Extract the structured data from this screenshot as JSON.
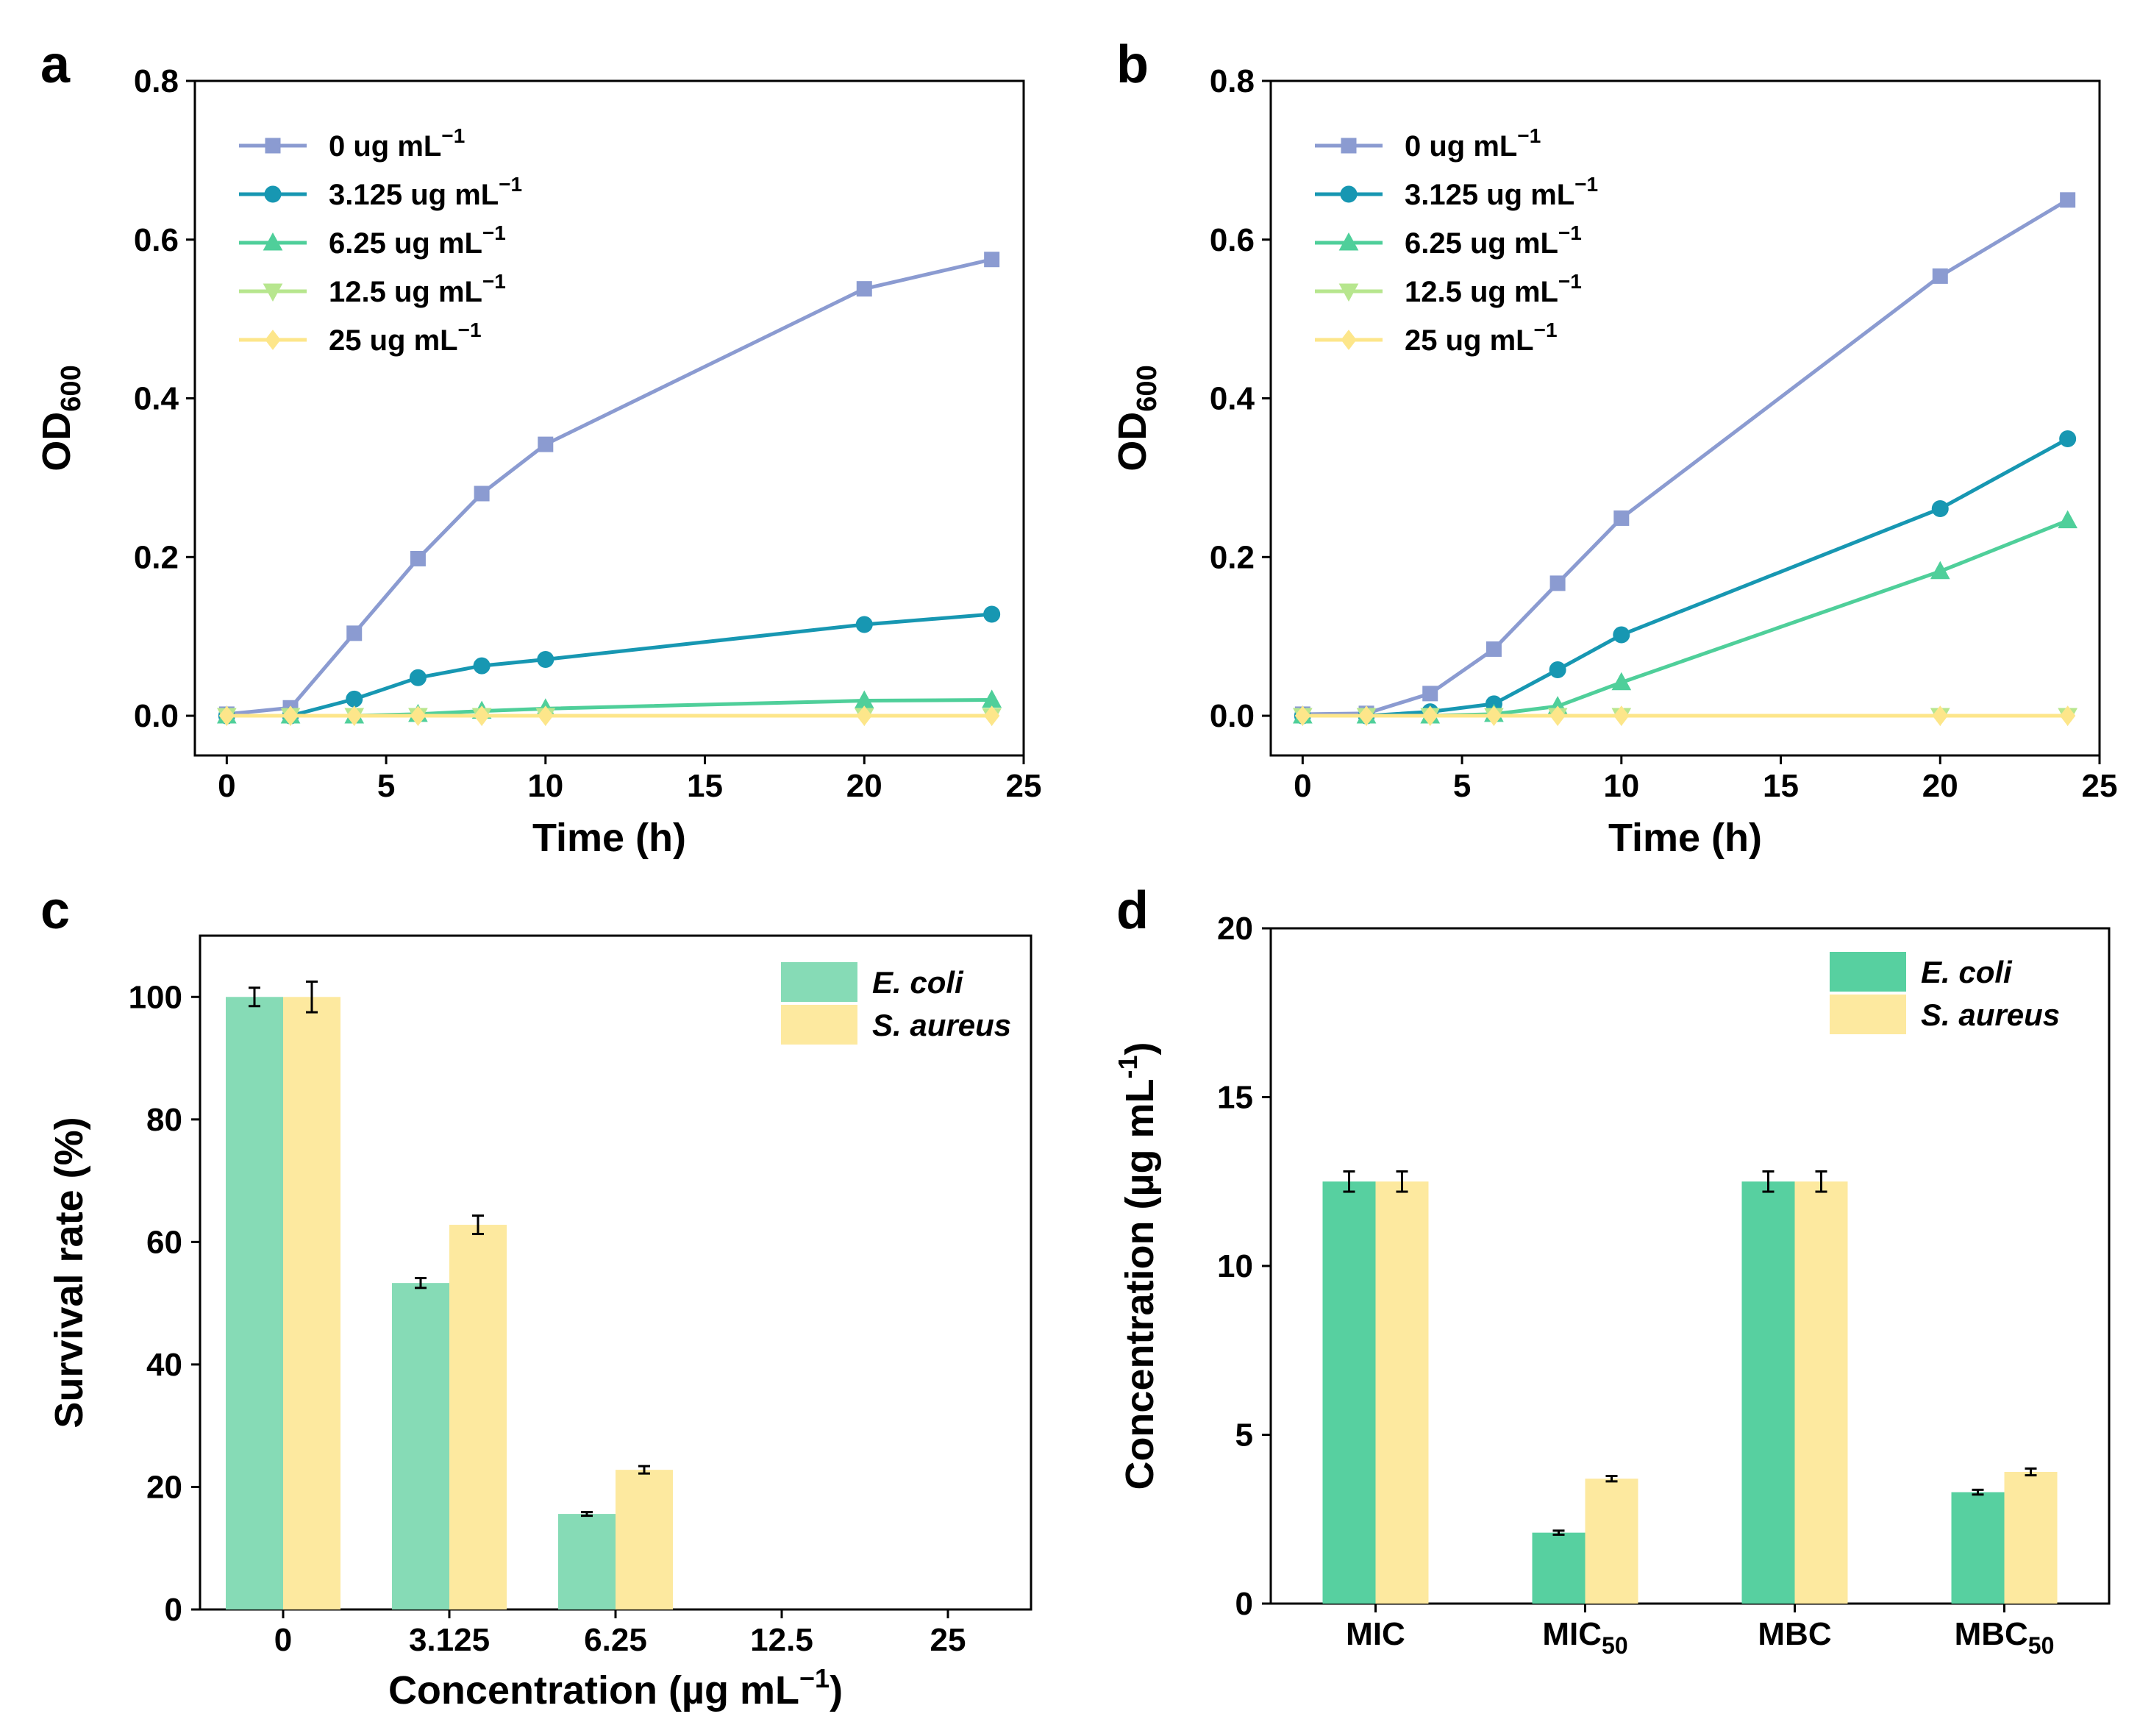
{
  "figure": {
    "panels": [
      {
        "letter": "a"
      },
      {
        "letter": "b"
      },
      {
        "letter": "c"
      },
      {
        "letter": "d"
      }
    ]
  },
  "chart_data": [
    {
      "id": "a",
      "type": "line",
      "title": "",
      "xlabel": "Time (h)",
      "ylabel": "OD",
      "ylabel_sub": "600",
      "xlim": [
        -1,
        25
      ],
      "ylim": [
        -0.05,
        0.8
      ],
      "xticks": [
        0,
        5,
        10,
        15,
        20,
        25
      ],
      "yticks": [
        0.0,
        0.2,
        0.4,
        0.6,
        0.8
      ],
      "ytick_labels": [
        "0.0",
        "0.2",
        "0.4",
        "0.6",
        "0.8"
      ],
      "legend_position": "top-left",
      "x": [
        0,
        2,
        4,
        6,
        8,
        10,
        20,
        24
      ],
      "series": [
        {
          "name": "0 ug mL",
          "sup": "−1",
          "color": "#8b9bd1",
          "marker": "square",
          "values": [
            0.002,
            0.01,
            0.104,
            0.198,
            0.28,
            0.342,
            0.538,
            0.575
          ]
        },
        {
          "name": "3.125 ug mL",
          "sup": "−1",
          "color": "#1797b2",
          "marker": "circle",
          "values": [
            0.0,
            0.0,
            0.021,
            0.048,
            0.063,
            0.071,
            0.115,
            0.128
          ]
        },
        {
          "name": "6.25 ug mL",
          "sup": "−1",
          "color": "#4fcf9a",
          "marker": "triangle-up",
          "values": [
            0.0,
            0.0,
            0.0,
            0.002,
            0.006,
            0.009,
            0.019,
            0.02
          ]
        },
        {
          "name": "12.5 ug mL",
          "sup": "−1",
          "color": "#b7e68e",
          "marker": "triangle-down",
          "values": [
            0.0,
            0.0,
            0.0,
            0.0,
            0.0,
            0.0,
            0.0,
            0.0
          ]
        },
        {
          "name": "25 ug mL",
          "sup": "−1",
          "color": "#fde68a",
          "marker": "diamond",
          "values": [
            0.0,
            0.0,
            0.0,
            0.0,
            0.0,
            0.0,
            0.0,
            0.0
          ]
        }
      ]
    },
    {
      "id": "b",
      "type": "line",
      "title": "",
      "xlabel": "Time (h)",
      "ylabel": "OD",
      "ylabel_sub": "600",
      "xlim": [
        -1,
        25
      ],
      "ylim": [
        -0.05,
        0.8
      ],
      "xticks": [
        0,
        5,
        10,
        15,
        20,
        25
      ],
      "yticks": [
        0.0,
        0.2,
        0.4,
        0.6,
        0.8
      ],
      "ytick_labels": [
        "0.0",
        "0.2",
        "0.4",
        "0.6",
        "0.8"
      ],
      "legend_position": "top-left",
      "x": [
        0,
        2,
        4,
        6,
        8,
        10,
        20,
        24
      ],
      "series": [
        {
          "name": "0 ug mL",
          "sup": "−1",
          "color": "#8b9bd1",
          "marker": "square",
          "values": [
            0.002,
            0.003,
            0.028,
            0.084,
            0.167,
            0.249,
            0.554,
            0.65
          ]
        },
        {
          "name": "3.125 ug mL",
          "sup": "−1",
          "color": "#1797b2",
          "marker": "circle",
          "values": [
            0.0,
            0.0,
            0.005,
            0.015,
            0.058,
            0.102,
            0.261,
            0.349
          ]
        },
        {
          "name": "6.25 ug mL",
          "sup": "−1",
          "color": "#4fcf9a",
          "marker": "triangle-up",
          "values": [
            0.0,
            0.0,
            0.0,
            0.002,
            0.012,
            0.042,
            0.182,
            0.246
          ]
        },
        {
          "name": "12.5 ug mL",
          "sup": "−1",
          "color": "#b7e68e",
          "marker": "triangle-down",
          "values": [
            0.0,
            0.0,
            0.0,
            0.0,
            0.0,
            0.0,
            0.0,
            0.0
          ]
        },
        {
          "name": "25 ug mL",
          "sup": "−1",
          "color": "#fde68a",
          "marker": "diamond",
          "values": [
            0.0,
            0.0,
            0.0,
            0.0,
            0.0,
            0.0,
            0.0,
            0.0
          ]
        }
      ]
    },
    {
      "id": "c",
      "type": "bar",
      "title": "",
      "xlabel": "Concentration (µg mL",
      "xlabel_sup": "−1",
      "xlabel_end": ")",
      "ylabel": "Survival rate (%)",
      "ylim": [
        0,
        110
      ],
      "yticks": [
        0,
        20,
        40,
        60,
        80,
        100
      ],
      "categories": [
        "0",
        "3.125",
        "6.25",
        "12.5",
        "25"
      ],
      "legend_position": "top-right",
      "series": [
        {
          "name": "E. coli",
          "color": "#86dbb6",
          "values": [
            100,
            53.3,
            15.6,
            0,
            0
          ],
          "errors": [
            1.5,
            0.8,
            0.3,
            0,
            0
          ]
        },
        {
          "name": "S. aureus",
          "color": "#fde99f",
          "values": [
            100,
            62.8,
            22.8,
            0,
            0
          ],
          "errors": [
            2.5,
            1.5,
            0.6,
            0,
            0
          ]
        }
      ]
    },
    {
      "id": "d",
      "type": "bar",
      "title": "",
      "xlabel": "",
      "ylabel": "Concentration (µg mL",
      "ylabel_sup": "-1",
      "ylabel_end": ")",
      "ylim": [
        0,
        20
      ],
      "yticks": [
        0,
        5,
        10,
        15,
        20
      ],
      "categories": [
        {
          "main": "MIC",
          "sub": ""
        },
        {
          "main": "MIC",
          "sub": "50"
        },
        {
          "main": "MBC",
          "sub": ""
        },
        {
          "main": "MBC",
          "sub": "50"
        }
      ],
      "legend_position": "top-right",
      "series": [
        {
          "name": "E. coli",
          "color": "#57d0a0",
          "values": [
            12.5,
            2.1,
            12.5,
            3.3
          ],
          "errors": [
            0.3,
            0.06,
            0.3,
            0.07
          ]
        },
        {
          "name": "S. aureus",
          "color": "#fde99f",
          "values": [
            12.5,
            3.7,
            12.5,
            3.9
          ],
          "errors": [
            0.3,
            0.08,
            0.3,
            0.1
          ]
        }
      ]
    }
  ]
}
